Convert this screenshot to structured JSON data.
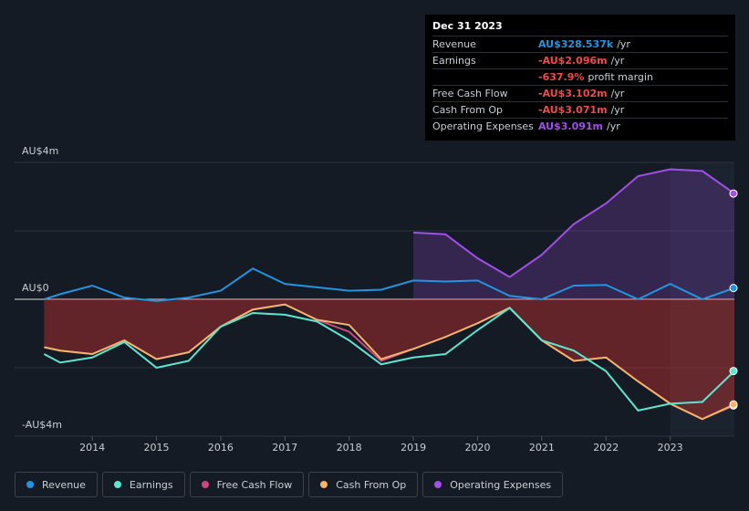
{
  "chart_data": {
    "type": "line",
    "x": [
      2013.25,
      2013.5,
      2014,
      2014.5,
      2015,
      2015.5,
      2016,
      2016.5,
      2017,
      2017.5,
      2018,
      2018.5,
      2019,
      2019.5,
      2020,
      2020.5,
      2021,
      2021.5,
      2022,
      2022.5,
      2023,
      2023.5,
      2024
    ],
    "series": [
      {
        "name": "Revenue",
        "color": "#2394df",
        "values": [
          0.0,
          0.15,
          0.4,
          0.05,
          -0.05,
          0.05,
          0.25,
          0.9,
          0.45,
          0.35,
          0.25,
          0.28,
          0.55,
          0.52,
          0.55,
          0.1,
          0.0,
          0.4,
          0.42,
          0.0,
          0.45,
          0.0,
          0.33
        ]
      },
      {
        "name": "Earnings",
        "color": "#5ee5d1",
        "values": [
          -1.6,
          -1.85,
          -1.7,
          -1.25,
          -2.0,
          -1.8,
          -0.8,
          -0.4,
          -0.45,
          -0.65,
          -1.2,
          -1.9,
          -1.7,
          -1.6,
          -0.9,
          -0.25,
          -1.2,
          -1.5,
          -2.1,
          -3.25,
          -3.05,
          -3.0,
          -2.096
        ]
      },
      {
        "name": "Free Cash Flow",
        "color": "#d0467f",
        "values": [
          -1.4,
          -1.5,
          -1.6,
          -1.2,
          -1.75,
          -1.55,
          -0.8,
          -0.3,
          -0.15,
          -0.6,
          -0.95,
          -1.8,
          -1.45,
          -1.1,
          -0.7,
          -0.25,
          -1.2,
          -1.8,
          -1.7,
          -2.4,
          -3.05,
          -3.5,
          -3.102
        ]
      },
      {
        "name": "Cash From Op",
        "color": "#f3b46c",
        "values": [
          -1.4,
          -1.5,
          -1.6,
          -1.2,
          -1.75,
          -1.55,
          -0.8,
          -0.3,
          -0.15,
          -0.6,
          -0.75,
          -1.75,
          -1.45,
          -1.1,
          -0.7,
          -0.25,
          -1.2,
          -1.8,
          -1.7,
          -2.4,
          -3.05,
          -3.5,
          -3.071
        ]
      },
      {
        "name": "Operating Expenses",
        "color": "#a24ee8",
        "values": [
          null,
          null,
          null,
          null,
          null,
          null,
          null,
          null,
          null,
          null,
          null,
          null,
          1.95,
          1.9,
          1.2,
          0.65,
          1.3,
          2.2,
          2.8,
          3.6,
          3.8,
          3.75,
          3.091
        ]
      }
    ],
    "xlim": [
      2012.79,
      2024.0
    ],
    "xticks": [
      2014,
      2015,
      2016,
      2017,
      2018,
      2019,
      2020,
      2021,
      2022,
      2023
    ],
    "ylim": [
      -4,
      4
    ],
    "yticks": [
      {
        "value": 4,
        "label": "AU$4m"
      },
      {
        "value": 2,
        "label": null
      },
      {
        "value": 0,
        "label": "AU$0"
      },
      {
        "value": -2,
        "label": null
      },
      {
        "value": -4,
        "label": "-AU$4m"
      }
    ],
    "grid": true
  },
  "tooltip": {
    "date": "Dec 31 2023",
    "rows": [
      {
        "label": "Revenue",
        "value": "AU$328.537k",
        "unit": "/yr",
        "color": "#2394df"
      },
      {
        "label": "Earnings",
        "value": "-AU$2.096m",
        "unit": "/yr",
        "color": "#f04a4a"
      },
      {
        "label": null,
        "value": "-637.9%",
        "unit": "profit margin",
        "color": "#f04a4a"
      },
      {
        "label": "Free Cash Flow",
        "value": "-AU$3.102m",
        "unit": "/yr",
        "color": "#f04a4a"
      },
      {
        "label": "Cash From Op",
        "value": "-AU$3.071m",
        "unit": "/yr",
        "color": "#f04a4a"
      },
      {
        "label": "Operating Expenses",
        "value": "AU$3.091m",
        "unit": "/yr",
        "color": "#a24ee8"
      }
    ]
  }
}
